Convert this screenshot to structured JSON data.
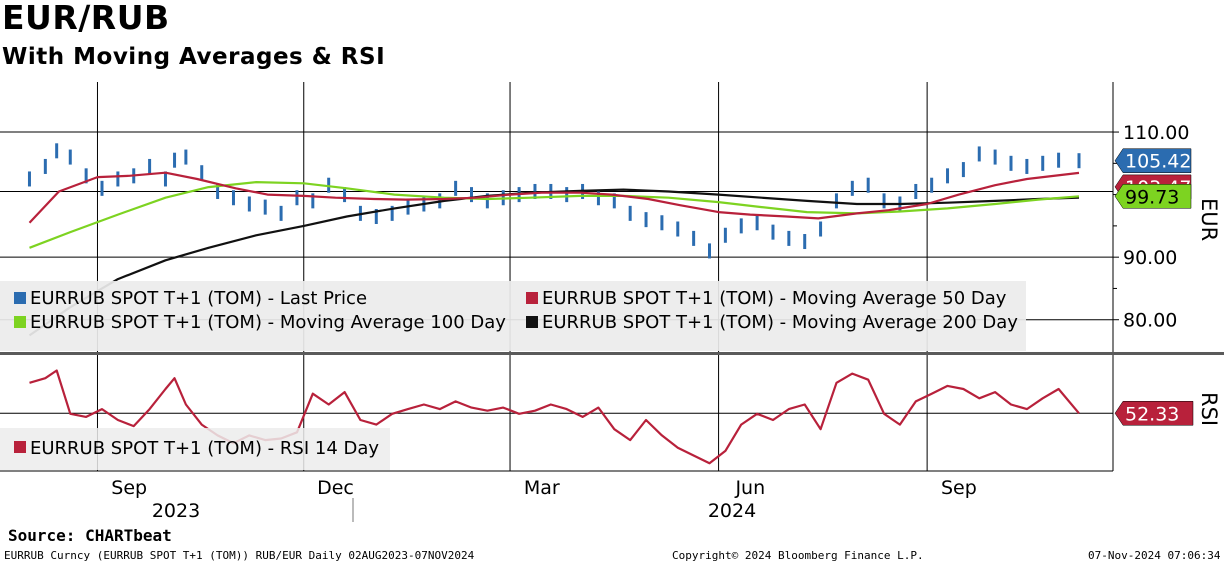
{
  "header": {
    "title": "EUR/RUB",
    "subtitle": "With Moving Averages & RSI"
  },
  "footer": {
    "source": "Source: CHARTbeat",
    "security": "EURRUB Curncy (EURRUB SPOT T+1 (TOM)) RUB/EUR  Daily 02AUG2023-07NOV2024",
    "copyright": "Copyright© 2024 Bloomberg Finance L.P.",
    "timestamp": "07-Nov-2024 07:06:34"
  },
  "colors": {
    "last_price": "#2b6cb0",
    "ma50": "#b8213b",
    "ma100": "#7dd321",
    "ma200": "#111111",
    "rsi": "#b8213b",
    "legend_bg": "#ececec",
    "divider": "#5a5a5a"
  },
  "chart_data": [
    {
      "type": "line",
      "panel": "price",
      "y_axis_title": "EUR",
      "ylim": [
        75,
        118
      ],
      "y_ticks": [
        "110.00",
        "90.00",
        "80.00"
      ],
      "y_tick_values": [
        110,
        90,
        80
      ],
      "x_month_labels": [
        "Sep",
        "Dec",
        "Mar",
        "Jun",
        "Sep"
      ],
      "x_year_labels": [
        "2023",
        "2024"
      ],
      "x_range": [
        "2023-08-02",
        "2024-11-07"
      ],
      "grid": true,
      "legend_position": "bottom-left",
      "last_values": [
        {
          "series": "EURRUB SPOT T+1 (TOM) - Last Price",
          "label": "105.42",
          "color": "#2b6cb0"
        },
        {
          "series": "EURRUB SPOT T+1 (TOM) - Moving Average 50 Day",
          "label": "103.47",
          "color": "#b8213b"
        },
        {
          "series": "EURRUB SPOT T+1 (TOM) - Moving Average 100 Day",
          "label": "99.73",
          "color": "#7dd321"
        }
      ],
      "series": [
        {
          "name": "EURRUB SPOT T+1 (TOM) - Last Price",
          "style": "bars",
          "dates": [
            "2023-08-02",
            "2023-08-09",
            "2023-08-14",
            "2023-08-20",
            "2023-08-27",
            "2023-09-03",
            "2023-09-10",
            "2023-09-17",
            "2023-09-24",
            "2023-10-01",
            "2023-10-05",
            "2023-10-10",
            "2023-10-17",
            "2023-10-24",
            "2023-10-31",
            "2023-11-07",
            "2023-11-14",
            "2023-11-21",
            "2023-11-28",
            "2023-12-05",
            "2023-12-12",
            "2023-12-19",
            "2023-12-26",
            "2024-01-02",
            "2024-01-09",
            "2024-01-16",
            "2024-01-23",
            "2024-01-30",
            "2024-02-06",
            "2024-02-13",
            "2024-02-20",
            "2024-02-27",
            "2024-03-05",
            "2024-03-12",
            "2024-03-19",
            "2024-03-26",
            "2024-04-02",
            "2024-04-09",
            "2024-04-16",
            "2024-04-23",
            "2024-04-30",
            "2024-05-07",
            "2024-05-14",
            "2024-05-21",
            "2024-05-28",
            "2024-06-04",
            "2024-06-11",
            "2024-06-18",
            "2024-06-25",
            "2024-07-02",
            "2024-07-09",
            "2024-07-16",
            "2024-07-23",
            "2024-07-30",
            "2024-08-06",
            "2024-08-13",
            "2024-08-20",
            "2024-08-27",
            "2024-09-03",
            "2024-09-10",
            "2024-09-17",
            "2024-09-24",
            "2024-10-01",
            "2024-10-08",
            "2024-10-15",
            "2024-10-22",
            "2024-10-29",
            "2024-11-07"
          ],
          "values": [
            102.5,
            104.5,
            107.0,
            106.0,
            103.0,
            101.0,
            102.5,
            103.0,
            104.5,
            102.5,
            105.5,
            106.0,
            103.5,
            100.5,
            99.5,
            98.5,
            98.0,
            97.0,
            99.5,
            99.0,
            101.5,
            100.0,
            97.0,
            96.5,
            97.0,
            98.0,
            98.5,
            99.0,
            101.0,
            100.0,
            99.0,
            99.5,
            100.0,
            100.5,
            100.5,
            100.0,
            100.5,
            99.5,
            99.0,
            97.0,
            96.0,
            95.5,
            94.5,
            93.0,
            91.0,
            93.5,
            95.0,
            95.5,
            94.0,
            93.0,
            92.5,
            94.5,
            99.0,
            101.0,
            101.5,
            99.0,
            98.5,
            100.5,
            101.5,
            103.0,
            104.0,
            106.5,
            106.0,
            105.0,
            104.5,
            105.0,
            105.5,
            105.42
          ]
        },
        {
          "name": "EURRUB SPOT T+1 (TOM) - Moving Average 50 Day",
          "style": "line",
          "dates": [
            "2023-08-02",
            "2023-08-15",
            "2023-09-01",
            "2023-09-15",
            "2023-10-01",
            "2023-10-15",
            "2023-11-01",
            "2023-11-15",
            "2023-12-01",
            "2023-12-15",
            "2024-01-01",
            "2024-01-15",
            "2024-02-01",
            "2024-02-15",
            "2024-03-01",
            "2024-03-15",
            "2024-04-01",
            "2024-04-15",
            "2024-05-01",
            "2024-05-15",
            "2024-06-01",
            "2024-06-15",
            "2024-07-01",
            "2024-07-15",
            "2024-08-01",
            "2024-08-15",
            "2024-09-01",
            "2024-09-15",
            "2024-10-01",
            "2024-10-15",
            "2024-11-07"
          ],
          "values": [
            95.5,
            100.5,
            102.8,
            103.0,
            103.5,
            102.5,
            101.0,
            100.0,
            99.8,
            99.5,
            99.3,
            99.2,
            99.3,
            99.5,
            100.0,
            100.3,
            100.3,
            100.0,
            99.3,
            98.3,
            97.2,
            96.8,
            96.5,
            96.2,
            97.0,
            97.5,
            98.5,
            100.0,
            101.5,
            102.5,
            103.47
          ]
        },
        {
          "name": "EURRUB SPOT T+1 (TOM) - Moving Average 100 Day",
          "style": "line",
          "dates": [
            "2023-08-02",
            "2023-08-20",
            "2023-09-10",
            "2023-10-01",
            "2023-10-20",
            "2023-11-10",
            "2023-12-01",
            "2023-12-20",
            "2024-01-10",
            "2024-02-01",
            "2024-02-20",
            "2024-03-10",
            "2024-04-01",
            "2024-04-20",
            "2024-05-10",
            "2024-06-01",
            "2024-06-20",
            "2024-07-10",
            "2024-08-01",
            "2024-08-20",
            "2024-09-10",
            "2024-10-01",
            "2024-10-20",
            "2024-11-07"
          ],
          "values": [
            91.5,
            94.0,
            96.8,
            99.5,
            101.2,
            102.0,
            101.8,
            101.0,
            100.0,
            99.5,
            99.3,
            99.5,
            99.8,
            99.8,
            99.5,
            98.8,
            98.0,
            97.2,
            97.0,
            97.3,
            97.8,
            98.5,
            99.2,
            99.73
          ]
        },
        {
          "name": "EURRUB SPOT T+1 (TOM) - Moving Average 200 Day",
          "style": "line",
          "dates": [
            "2023-08-02",
            "2023-08-20",
            "2023-09-10",
            "2023-10-01",
            "2023-10-20",
            "2023-11-10",
            "2023-12-01",
            "2023-12-20",
            "2024-01-10",
            "2024-02-01",
            "2024-02-20",
            "2024-03-10",
            "2024-04-01",
            "2024-04-20",
            "2024-05-10",
            "2024-06-01",
            "2024-06-20",
            "2024-07-10",
            "2024-08-01",
            "2024-08-20",
            "2024-09-10",
            "2024-10-01",
            "2024-10-20",
            "2024-11-07"
          ],
          "values": [
            77.5,
            82.0,
            86.5,
            89.5,
            91.5,
            93.5,
            95.0,
            96.5,
            97.8,
            99.0,
            99.8,
            100.3,
            100.6,
            100.8,
            100.5,
            100.0,
            99.5,
            99.0,
            98.5,
            98.5,
            98.7,
            99.0,
            99.3,
            99.5
          ]
        }
      ]
    },
    {
      "type": "line",
      "panel": "rsi",
      "y_axis_title": "RSI",
      "ylim": [
        15,
        90
      ],
      "grid": true,
      "legend_position": "bottom-left",
      "last_values": [
        {
          "series": "EURRUB SPOT T+1 (TOM) - RSI 14 Day",
          "label": "52.33",
          "color": "#b8213b"
        }
      ],
      "series": [
        {
          "name": "EURRUB SPOT T+1 (TOM) - RSI 14 Day",
          "dates": [
            "2023-08-02",
            "2023-08-09",
            "2023-08-14",
            "2023-08-20",
            "2023-08-27",
            "2023-09-03",
            "2023-09-10",
            "2023-09-17",
            "2023-09-24",
            "2023-10-01",
            "2023-10-05",
            "2023-10-10",
            "2023-10-17",
            "2023-10-24",
            "2023-10-31",
            "2023-11-07",
            "2023-11-14",
            "2023-11-21",
            "2023-11-28",
            "2023-12-05",
            "2023-12-12",
            "2023-12-19",
            "2023-12-26",
            "2024-01-02",
            "2024-01-09",
            "2024-01-16",
            "2024-01-23",
            "2024-01-30",
            "2024-02-06",
            "2024-02-13",
            "2024-02-20",
            "2024-02-27",
            "2024-03-05",
            "2024-03-12",
            "2024-03-19",
            "2024-03-26",
            "2024-04-02",
            "2024-04-09",
            "2024-04-16",
            "2024-04-23",
            "2024-04-30",
            "2024-05-07",
            "2024-05-14",
            "2024-05-21",
            "2024-05-28",
            "2024-06-04",
            "2024-06-11",
            "2024-06-18",
            "2024-06-25",
            "2024-07-02",
            "2024-07-09",
            "2024-07-16",
            "2024-07-23",
            "2024-07-30",
            "2024-08-06",
            "2024-08-13",
            "2024-08-20",
            "2024-08-27",
            "2024-09-03",
            "2024-09-10",
            "2024-09-17",
            "2024-09-24",
            "2024-10-01",
            "2024-10-08",
            "2024-10-15",
            "2024-10-22",
            "2024-10-29",
            "2024-11-07"
          ],
          "values": [
            72,
            75,
            80,
            52,
            50,
            55,
            48,
            44,
            55,
            68,
            75,
            58,
            45,
            38,
            33,
            38,
            35,
            36,
            40,
            65,
            58,
            66,
            48,
            45,
            52,
            55,
            58,
            55,
            60,
            56,
            54,
            56,
            52,
            54,
            58,
            55,
            50,
            56,
            42,
            35,
            48,
            38,
            30,
            25,
            20,
            28,
            45,
            52,
            48,
            55,
            58,
            42,
            72,
            78,
            74,
            52,
            45,
            60,
            65,
            70,
            68,
            62,
            66,
            58,
            55,
            62,
            68,
            52.33
          ]
        }
      ]
    }
  ]
}
